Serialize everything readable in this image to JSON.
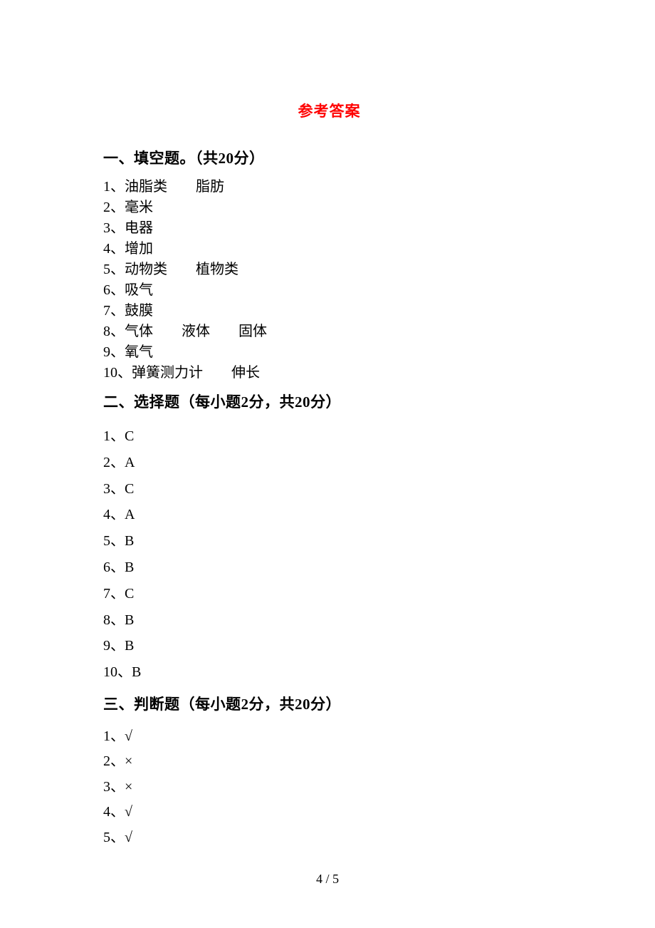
{
  "title": "参考答案",
  "section1": {
    "heading": "一、填空题。（共20分）",
    "answers": [
      "1、油脂类　　脂肪",
      "2、毫米",
      "3、电器",
      "4、增加",
      "5、动物类　　植物类",
      "6、吸气",
      "7、鼓膜",
      "8、气体　　液体　　固体",
      "9、氧气",
      "10、弹簧测力计　　伸长"
    ]
  },
  "section2": {
    "heading": "二、选择题（每小题2分，共20分）",
    "answers": [
      "1、C",
      "2、A",
      "3、C",
      "4、A",
      "5、B",
      "6、B",
      "7、C",
      "8、B",
      "9、B",
      "10、B"
    ]
  },
  "section3": {
    "heading": "三、判断题（每小题2分，共20分）",
    "answers": [
      "1、√",
      "2、×",
      "3、×",
      "4、√",
      "5、√"
    ]
  },
  "pageNumber": "4 / 5"
}
